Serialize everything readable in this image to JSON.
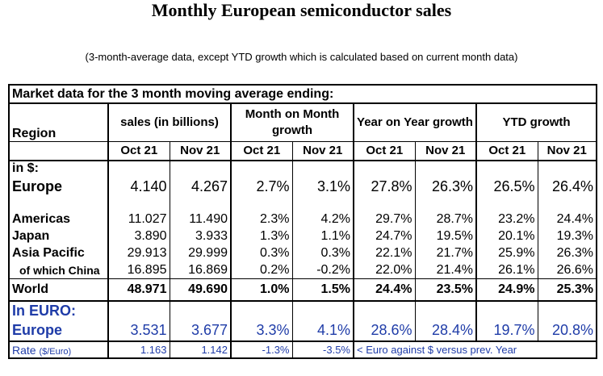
{
  "title": "Monthly European semiconductor sales",
  "subtitle": "(3-month-average data, except YTD growth which is calculated based on current month data)",
  "table": {
    "market_header": "Market data for the 3 month moving average ending:",
    "region_header": "Region",
    "groups": [
      "sales (in billions)",
      "Month on Month growth",
      "Year on Year growth",
      "YTD growth"
    ],
    "months": [
      "Oct 21",
      "Nov 21",
      "Oct 21",
      "Nov 21",
      "Oct 21",
      "Nov 21",
      "Oct 21",
      "Nov 21"
    ],
    "in_usd_label": "in $:",
    "europe_usd": {
      "label": "Europe",
      "values": [
        "4.140",
        "4.267",
        "2.7%",
        "3.1%",
        "27.8%",
        "26.3%",
        "26.5%",
        "26.4%"
      ]
    },
    "regions": [
      {
        "label": "Americas",
        "values": [
          "11.027",
          "11.490",
          "2.3%",
          "4.2%",
          "29.7%",
          "28.7%",
          "23.2%",
          "24.4%"
        ]
      },
      {
        "label": "Japan",
        "values": [
          "3.890",
          "3.933",
          "1.3%",
          "1.1%",
          "24.7%",
          "19.5%",
          "20.1%",
          "19.3%"
        ]
      },
      {
        "label": "Asia Pacific",
        "values": [
          "29.913",
          "29.999",
          "0.3%",
          "0.3%",
          "22.1%",
          "21.7%",
          "25.9%",
          "26.3%"
        ]
      },
      {
        "label": "of which China",
        "values": [
          "16.895",
          "16.869",
          "0.2%",
          "-0.2%",
          "22.0%",
          "21.4%",
          "26.1%",
          "26.6%"
        ]
      }
    ],
    "world": {
      "label": "World",
      "values": [
        "48.971",
        "49.690",
        "1.0%",
        "1.5%",
        "24.4%",
        "23.5%",
        "24.9%",
        "25.3%"
      ]
    },
    "in_euro_label": "In EURO:",
    "europe_eur": {
      "label": "Europe",
      "values": [
        "3.531",
        "3.677",
        "3.3%",
        "4.1%",
        "28.6%",
        "28.4%",
        "19.7%",
        "20.8%"
      ]
    },
    "rate": {
      "label": "Rate",
      "unit": "($/Euro)",
      "values": [
        "1.163",
        "1.142",
        "-1.3%",
        "-3.5%"
      ],
      "note": "< Euro against $ versus prev. Year"
    }
  }
}
